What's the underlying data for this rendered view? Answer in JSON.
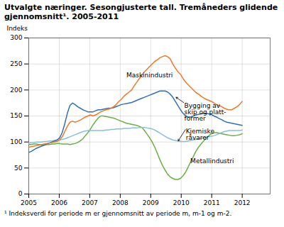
{
  "chart_data": {
    "type": "line",
    "title": "Utvalgte næringer. Sesongjusterte tall. Tremåneders glidende gjennomsnitt¹. 2005-2011",
    "ylabel": "Indeks",
    "footnote": "¹ Indeksverdi for periode m er gjennomsnitt av periode m, m-1 og m-2.",
    "x": [
      2005,
      2005.0843,
      2005.1687,
      2005.253,
      2005.3373,
      2005.4217,
      2005.506,
      2005.5904,
      2005.6747,
      2005.759,
      2005.8434,
      2005.9277,
      2006.012,
      2006.0964,
      2006.1807,
      2006.2651,
      2006.3494,
      2006.4337,
      2006.5181,
      2006.6024,
      2006.6867,
      2006.7711,
      2006.8554,
      2006.9398,
      2007.0241,
      2007.1084,
      2007.1928,
      2007.2771,
      2007.3614,
      2007.4458,
      2007.5301,
      2007.6145,
      2007.6988,
      2007.7831,
      2007.8675,
      2007.9518,
      2008.0361,
      2008.1205,
      2008.2048,
      2008.2892,
      2008.3735,
      2008.4578,
      2008.5422,
      2008.6265,
      2008.7108,
      2008.7952,
      2008.8795,
      2008.9639,
      2009.0482,
      2009.1325,
      2009.2169,
      2009.3012,
      2009.3855,
      2009.4699,
      2009.5542,
      2009.6386,
      2009.7229,
      2009.8072,
      2009.8916,
      2009.9759,
      2010.0602,
      2010.1446,
      2010.2289,
      2010.3133,
      2010.3976,
      2010.4819,
      2010.5663,
      2010.6506,
      2010.7349,
      2010.8193,
      2010.9036,
      2010.988,
      2011.0723,
      2011.1566,
      2011.241,
      2011.3253,
      2011.4096,
      2011.494,
      2011.5783,
      2011.6627,
      2011.747,
      2011.8313,
      2011.9157,
      2012
    ],
    "series": [
      {
        "name": "Metallindustri",
        "color": "#68b044",
        "values": [
          95,
          95,
          96,
          96,
          95,
          94,
          94,
          95,
          95,
          96,
          96,
          97,
          97,
          96,
          96,
          96,
          95,
          96,
          97,
          99,
          102,
          106,
          112,
          118,
          125,
          133,
          140,
          146,
          150,
          150,
          149,
          148,
          147,
          146,
          144,
          142,
          140,
          138,
          136,
          135,
          134,
          133,
          132,
          130,
          128,
          122,
          115,
          108,
          100,
          90,
          78,
          66,
          55,
          46,
          38,
          33,
          30,
          28,
          28,
          30,
          35,
          42,
          52,
          62,
          72,
          82,
          90,
          96,
          102,
          107,
          112,
          116,
          118,
          118,
          117,
          116,
          115,
          114,
          113,
          112,
          112,
          113,
          114,
          116
        ]
      },
      {
        "name": "Kjemiske",
        "color": "#88c0dc",
        "values": [
          98,
          99,
          99,
          100,
          100,
          100,
          101,
          101,
          102,
          102,
          103,
          103,
          104,
          105,
          106,
          108,
          110,
          112,
          114,
          116,
          118,
          120,
          121,
          122,
          122,
          122,
          122,
          122,
          122,
          122,
          123,
          123,
          124,
          124,
          125,
          125,
          125,
          126,
          126,
          126,
          127,
          127,
          127,
          128,
          128,
          128,
          127,
          126,
          125,
          123,
          120,
          117,
          114,
          111,
          108,
          106,
          104,
          103,
          102,
          101,
          101,
          101,
          102,
          103,
          104,
          105,
          106,
          107,
          108,
          109,
          110,
          111,
          112,
          114,
          116,
          118,
          120,
          121,
          122,
          122,
          122,
          122,
          122,
          123
        ]
      },
      {
        "name": "Bygging",
        "color": "#3070b8",
        "values": [
          80,
          82,
          85,
          88,
          90,
          92,
          94,
          96,
          98,
          100,
          102,
          104,
          108,
          118,
          135,
          155,
          170,
          175,
          172,
          168,
          165,
          162,
          160,
          158,
          158,
          158,
          160,
          162,
          162,
          163,
          164,
          165,
          165,
          166,
          168,
          170,
          172,
          173,
          174,
          175,
          176,
          178,
          180,
          182,
          184,
          186,
          188,
          190,
          192,
          194,
          196,
          198,
          198,
          198,
          196,
          192,
          186,
          178,
          170,
          162,
          155,
          150,
          148,
          148,
          150,
          152,
          153,
          154,
          155,
          155,
          154,
          153,
          150,
          148,
          145,
          143,
          140,
          138,
          137,
          136,
          135,
          134,
          133,
          132
        ]
      },
      {
        "name": "Maskinindustri",
        "color": "#f07828",
        "values": [
          90,
          91,
          92,
          93,
          94,
          95,
          96,
          97,
          98,
          99,
          100,
          101,
          104,
          110,
          120,
          130,
          138,
          140,
          138,
          140,
          142,
          145,
          148,
          150,
          152,
          150,
          152,
          155,
          158,
          160,
          162,
          163,
          165,
          168,
          172,
          178,
          182,
          188,
          192,
          196,
          200,
          208,
          215,
          222,
          228,
          235,
          240,
          245,
          250,
          255,
          258,
          262,
          264,
          266,
          264,
          260,
          250,
          242,
          235,
          230,
          222,
          215,
          210,
          205,
          200,
          195,
          192,
          188,
          185,
          182,
          180,
          178,
          175,
          172,
          170,
          168,
          165,
          163,
          162,
          162,
          165,
          168,
          172,
          178
        ]
      }
    ],
    "xlim": [
      2005,
      2012.9167
    ],
    "xticks": [
      2005,
      2006,
      2007,
      2008,
      2009,
      2010,
      2011,
      2012
    ],
    "ylim": [
      0,
      300
    ],
    "yticks": [
      0,
      50,
      100,
      150,
      200,
      250,
      300
    ],
    "grid": true,
    "annotations": [
      {
        "text": "Maskinindustri",
        "x": 2008.2,
        "y": 225,
        "position": "above"
      },
      {
        "text": "Bygging av\nskip og platt-\nformer",
        "x": 2009.83,
        "y": 186,
        "text_x": 2010.1,
        "text_y": 175,
        "position": "below"
      },
      {
        "text": "Kjemiske\nråvarer",
        "x": 2009.9,
        "y": 102,
        "text_x": 2010.15,
        "text_y": 125,
        "position": "below"
      },
      {
        "text": "Metallindustri",
        "x": 2010.3,
        "y": 68,
        "position": "below"
      }
    ]
  }
}
